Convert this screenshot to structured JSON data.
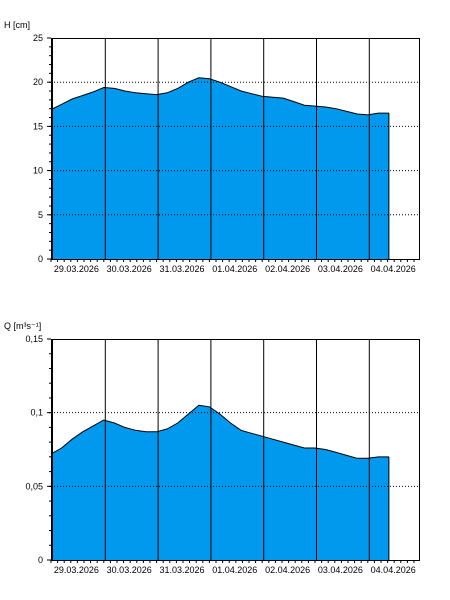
{
  "colors": {
    "fill": "#0099ee",
    "series_line": "#000000",
    "frame": "#000000",
    "grid": "#000000",
    "background": "#ffffff"
  },
  "chart_data": [
    {
      "type": "area",
      "ylabel": "H [cm]",
      "ylim": [
        0,
        25
      ],
      "yticks": [
        0,
        5,
        10,
        15,
        20,
        25
      ],
      "ytick_labels": [
        "0",
        "5",
        "10",
        "15",
        "20",
        "25"
      ],
      "horizontal_grid": "dotted",
      "vertical_grid": "solid at day boundaries",
      "x_tick_labels": [
        "29.03.2026",
        "30.03.2026",
        "31.03.2026",
        "01.04.2026",
        "02.04.2026",
        "03.04.2026",
        "04.04.2026"
      ],
      "x": [
        0,
        0.2,
        0.4,
        0.6,
        0.8,
        1.0,
        1.2,
        1.4,
        1.6,
        1.8,
        2.0,
        2.2,
        2.4,
        2.6,
        2.8,
        3.0,
        3.2,
        3.4,
        3.6,
        3.8,
        4.0,
        4.2,
        4.4,
        4.6,
        4.8,
        5.0,
        5.2,
        5.4,
        5.6,
        5.8,
        6.0,
        6.2,
        6.4
      ],
      "values": [
        16.9,
        17.5,
        18.1,
        18.5,
        18.9,
        19.4,
        19.3,
        19.0,
        18.8,
        18.7,
        18.6,
        18.8,
        19.3,
        20.0,
        20.5,
        20.4,
        20.0,
        19.5,
        19.0,
        18.7,
        18.4,
        18.3,
        18.2,
        17.8,
        17.4,
        17.3,
        17.2,
        17.0,
        16.7,
        16.4,
        16.3,
        16.5,
        16.5
      ]
    },
    {
      "type": "area",
      "ylabel": "Q [m³s⁻¹]",
      "ylim": [
        0,
        0.15
      ],
      "yticks": [
        0,
        0.05,
        0.1,
        0.15
      ],
      "ytick_labels": [
        "0",
        "0,05",
        "0,1",
        "0,15"
      ],
      "horizontal_grid": "dotted",
      "vertical_grid": "solid at day boundaries",
      "x_tick_labels": [
        "29.03.2026",
        "30.03.2026",
        "31.03.2026",
        "01.04.2026",
        "02.04.2026",
        "03.04.2026",
        "04.04.2026"
      ],
      "x": [
        0,
        0.2,
        0.4,
        0.6,
        0.8,
        1.0,
        1.2,
        1.4,
        1.6,
        1.8,
        2.0,
        2.2,
        2.4,
        2.6,
        2.8,
        3.0,
        3.2,
        3.4,
        3.6,
        3.8,
        4.0,
        4.2,
        4.4,
        4.6,
        4.8,
        5.0,
        5.2,
        5.4,
        5.6,
        5.8,
        6.0,
        6.2,
        6.4
      ],
      "values": [
        0.072,
        0.076,
        0.082,
        0.087,
        0.091,
        0.095,
        0.093,
        0.09,
        0.088,
        0.087,
        0.087,
        0.089,
        0.093,
        0.099,
        0.105,
        0.104,
        0.099,
        0.093,
        0.088,
        0.086,
        0.084,
        0.082,
        0.08,
        0.078,
        0.076,
        0.076,
        0.075,
        0.073,
        0.071,
        0.069,
        0.069,
        0.07,
        0.07
      ]
    }
  ]
}
